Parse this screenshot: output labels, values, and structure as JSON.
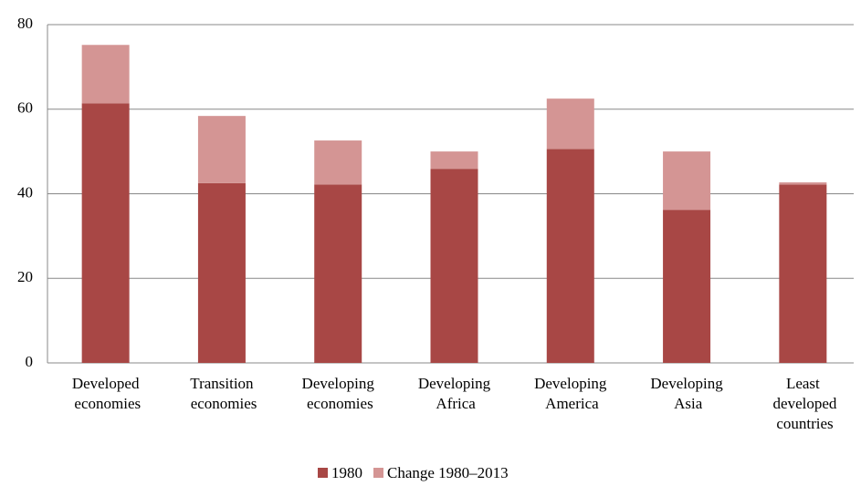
{
  "chart_data": {
    "type": "stacked_bar",
    "categories": [
      "Developed economies",
      "Transition economies",
      "Developing economies",
      "Developing Africa",
      "Developing America",
      "Developing Asia",
      "Least developed countries"
    ],
    "series": [
      {
        "name": "1980",
        "color": "#a84745",
        "values": [
          61.4,
          42.5,
          42.2,
          45.9,
          50.6,
          36.2,
          42.2
        ]
      },
      {
        "name": "Change 1980–2013",
        "color": "#d49594",
        "values": [
          13.8,
          15.9,
          10.4,
          4.1,
          11.9,
          13.8,
          0.5
        ]
      }
    ],
    "ylim": [
      0,
      80
    ],
    "yticks": [
      0,
      20,
      40,
      60,
      80
    ],
    "grid": true,
    "legend": "bottom"
  }
}
